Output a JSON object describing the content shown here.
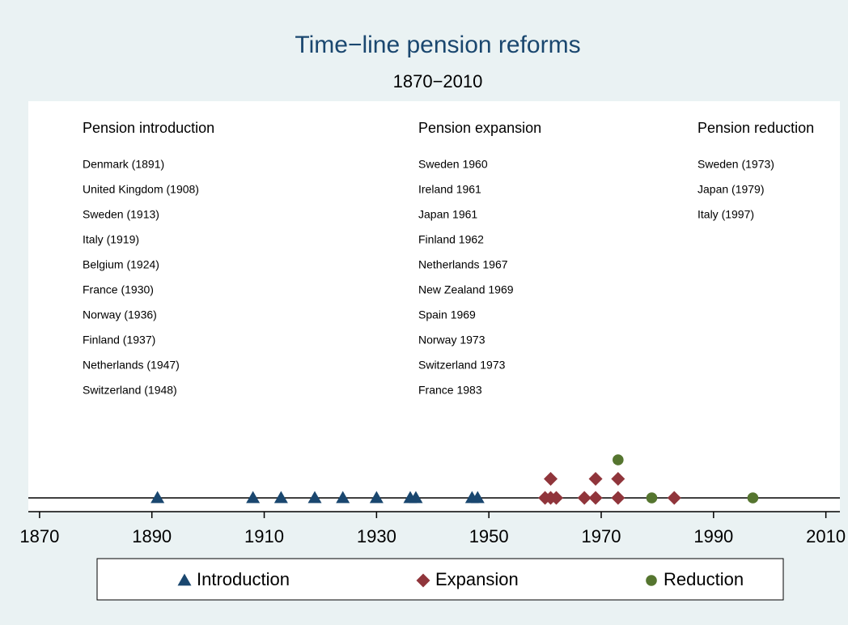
{
  "chart_data": {
    "type": "scatter",
    "title": "Time−line pension reforms",
    "subtitle": "1870−2010",
    "xlim": [
      1868,
      2012.5
    ],
    "xticks": [
      1870,
      1890,
      1910,
      1930,
      1950,
      1970,
      1990,
      2010
    ],
    "series": [
      {
        "name": "Introduction",
        "color": "#1a476f",
        "marker": "triangle",
        "x": [
          1891,
          1908,
          1913,
          1919,
          1924,
          1930,
          1936,
          1937,
          1947,
          1948
        ],
        "y": [
          0,
          0,
          0,
          0,
          0,
          0,
          0,
          0,
          0,
          0
        ]
      },
      {
        "name": "Expansion",
        "color": "#90353b",
        "marker": "diamond",
        "x": [
          1960,
          1961,
          1961,
          1962,
          1967,
          1969,
          1969,
          1973,
          1973,
          1983
        ],
        "y": [
          0,
          0,
          1,
          0,
          0,
          0,
          1,
          0,
          1,
          0
        ]
      },
      {
        "name": "Reduction",
        "color": "#55752f",
        "marker": "circle",
        "x": [
          1973,
          1979,
          1997
        ],
        "y": [
          2,
          0,
          0
        ]
      }
    ],
    "annotations": [
      {
        "title": "Pension introduction",
        "items": [
          "Denmark (1891)",
          "United Kingdom (1908)",
          "Sweden (1913)",
          "Italy (1919)",
          "Belgium (1924)",
          "France (1930)",
          "Norway (1936)",
          "Finland (1937)",
          "Netherlands (1947)",
          "Switzerland (1948)"
        ]
      },
      {
        "title": "Pension expansion",
        "items": [
          "Sweden 1960",
          "Ireland 1961",
          "Japan 1961",
          "Finland 1962",
          "Netherlands 1967",
          "New Zealand 1969",
          "Spain 1969",
          "Norway 1973",
          "Switzerland 1973",
          "France 1983"
        ]
      },
      {
        "title": "Pension reduction",
        "items": [
          "Sweden (1973)",
          "Japan (1979)",
          "Italy (1997)"
        ]
      }
    ]
  }
}
